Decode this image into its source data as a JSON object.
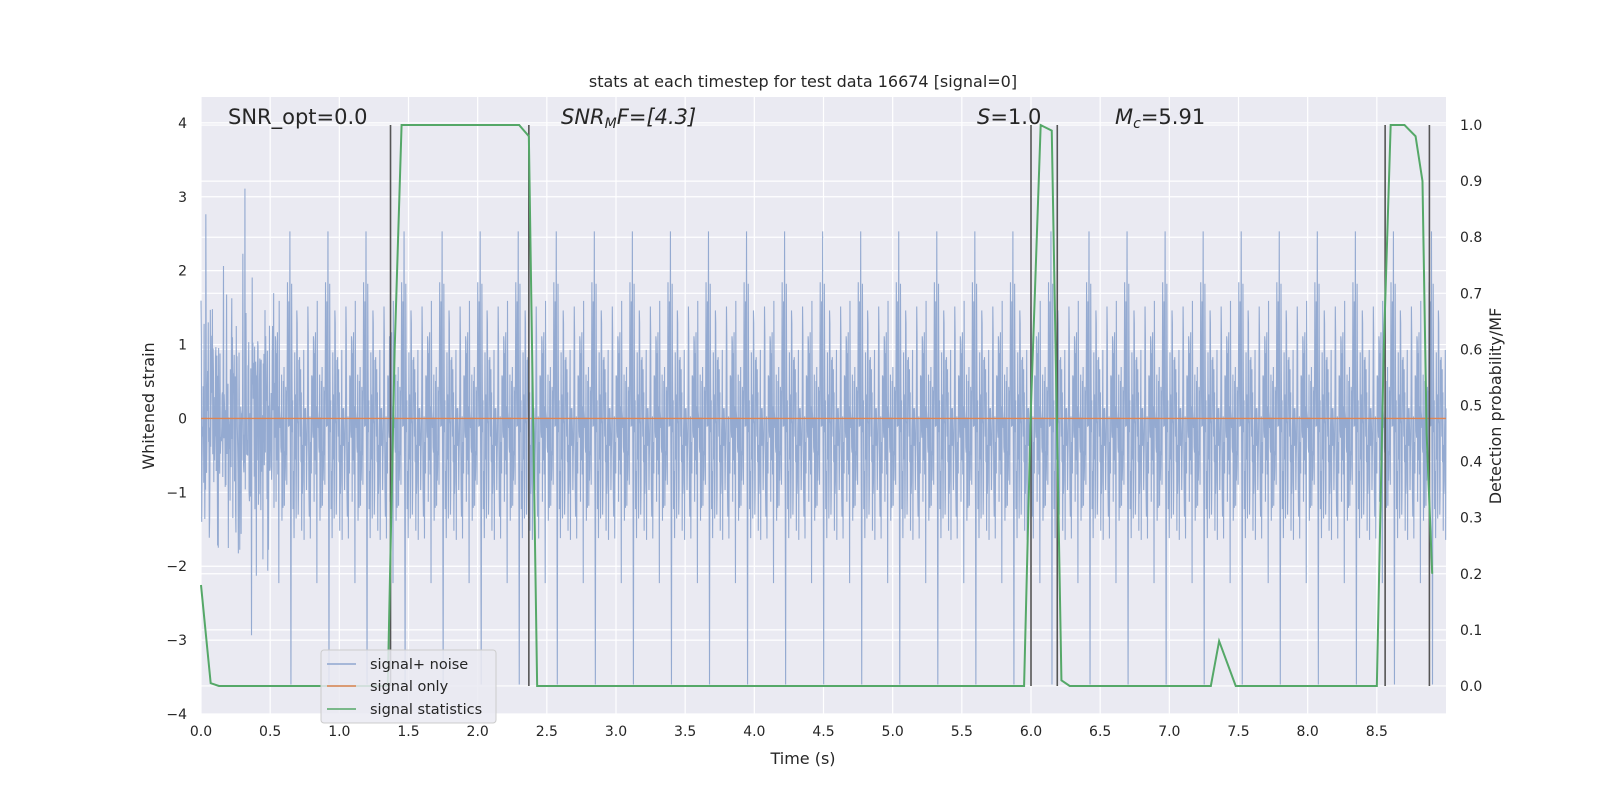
{
  "chart_data": {
    "type": "line",
    "title": "stats at each timestep for test data 16674 [signal=0]",
    "xlabel": "Time (s)",
    "ylabel_left": "Whitened strain",
    "ylabel_right": "Detection probability/MF",
    "xlim": [
      0.0,
      9.0
    ],
    "ylim_left": [
      -4.0,
      4.35
    ],
    "ylim_right": [
      -0.05,
      1.05
    ],
    "x_ticks": [
      "0.0",
      "0.5",
      "1.0",
      "1.5",
      "2.0",
      "2.5",
      "3.0",
      "3.5",
      "4.0",
      "4.5",
      "5.0",
      "5.5",
      "6.0",
      "6.5",
      "7.0",
      "7.5",
      "8.0",
      "8.5"
    ],
    "y_ticks_left": [
      "4",
      "3",
      "2",
      "1",
      "0",
      "−1",
      "−2",
      "−3",
      "−4"
    ],
    "y_ticks_right": [
      "1.0",
      "0.9",
      "0.8",
      "0.7",
      "0.6",
      "0.5",
      "0.4",
      "0.3",
      "0.2",
      "0.1",
      "0.0"
    ],
    "annotations": {
      "snr_opt": "SNR_opt=0.0",
      "snr_mf_sym": "SNR",
      "snr_mf_sub": "M",
      "snr_mf_tail": "F=[4.3]",
      "s_sym": "S",
      "s_tail": "=1.0",
      "mc_sym": "M",
      "mc_sub": "c",
      "mc_tail": "=5.91"
    },
    "legend": [
      "signal+ noise",
      "signal only",
      "signal statistics"
    ],
    "colors": {
      "noise": "#8fa6cf",
      "signal_only": "#dd8452",
      "statistics": "#55a868",
      "vline": "#555555",
      "plot_bg": "#eaeaf2",
      "grid": "#ffffff"
    },
    "series": [
      {
        "name": "signal+ noise",
        "note": "Gaussian-like whitened noise, sampled densely over 0–9 s",
        "approx_std": 0.95,
        "max_abs": 3.6
      },
      {
        "name": "signal only",
        "x": [
          0.0,
          9.0
        ],
        "y": [
          0.0,
          0.0
        ]
      },
      {
        "name": "signal statistics",
        "x": [
          0.0,
          0.07,
          0.13,
          1.35,
          1.4,
          1.45,
          2.3,
          2.37,
          2.43,
          5.95,
          6.0,
          6.07,
          6.15,
          6.22,
          6.28,
          7.3,
          7.36,
          7.42,
          7.48,
          8.5,
          8.55,
          8.6,
          8.7,
          8.78,
          8.83,
          8.86,
          8.9
        ],
        "y": [
          0.18,
          0.005,
          0.0,
          0.0,
          0.6,
          1.0,
          1.0,
          0.98,
          0.0,
          0.0,
          0.5,
          1.0,
          0.99,
          0.01,
          0.0,
          0.0,
          0.08,
          0.04,
          0.0,
          0.0,
          0.6,
          1.0,
          1.0,
          0.98,
          0.9,
          0.45,
          0.2
        ]
      }
    ],
    "vlines": [
      1.37,
      2.37,
      6.0,
      6.19,
      8.56,
      8.88
    ]
  }
}
